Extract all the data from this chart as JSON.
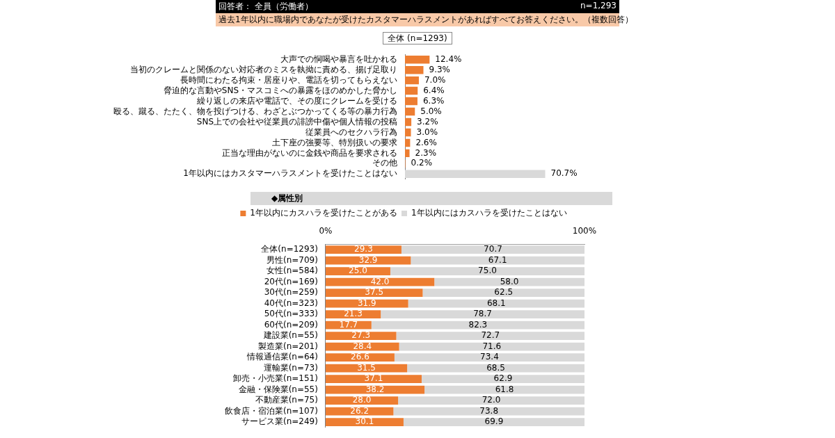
{
  "chart_data": [
    {
      "type": "bar",
      "orientation": "horizontal",
      "title": "全体 (n=1293)",
      "annotations": [
        "回答者： 全員（労働者）",
        "n=1,293",
        "過去1年以内に職場内であなたが受けたカスタマーハラスメントがあればすべてお答えください。（複数回答）"
      ],
      "categories": [
        "大声での恫喝や暴言を吐かれる",
        "当初のクレームと関係のない対応者のミスを執拗に責める、揚げ足取り",
        "長時間にわたる拘束・居座りや、電話を切ってもらえない",
        "脅迫的な言動やSNS・マスコミへの暴露をほのめかした脅かし",
        "繰り返しの来店や電話で、その度にクレームを受ける",
        "殴る、蹴る、たたく、物を投げつける、わざとぶつかってくる等の暴力行為",
        "SNS上での会社や従業員の誹謗中傷や個人情報の投稿",
        "従業員へのセクハラ行為",
        "土下座の強要等、特別扱いの要求",
        "正当な理由がないのに金銭や商品を要求される",
        "その他",
        "1年以内にはカスタマーハラスメントを受けたことはない"
      ],
      "values": [
        12.4,
        9.3,
        7.0,
        6.4,
        6.3,
        5.0,
        3.2,
        3.0,
        2.6,
        2.3,
        0.2,
        70.7
      ],
      "value_labels": [
        "12.4%",
        "9.3%",
        "7.0%",
        "6.4%",
        "6.3%",
        "5.0%",
        "3.2%",
        "3.0%",
        "2.6%",
        "2.3%",
        "0.2%",
        "70.7%"
      ],
      "colors": [
        "#ed7d31",
        "#ed7d31",
        "#ed7d31",
        "#ed7d31",
        "#ed7d31",
        "#ed7d31",
        "#ed7d31",
        "#ed7d31",
        "#ed7d31",
        "#ed7d31",
        "#ed7d31",
        "#d9d9d9"
      ],
      "tick_labels": "y",
      "legend": false
    },
    {
      "type": "bar",
      "orientation": "horizontal",
      "stacked": true,
      "title": "◆属性別",
      "categories": [
        "全体(n=1293)",
        "男性(n=709)",
        "女性(n=584)",
        "20代(n=169)",
        "30代(n=259)",
        "40代(n=323)",
        "50代(n=333)",
        "60代(n=209)",
        "建設業(n=55)",
        "製造業(n=201)",
        "情報通信業(n=64)",
        "運輸業(n=73)",
        "卸売・小売業(n=151)",
        "金融・保険業(n=55)",
        "不動産業(n=75)",
        "飲食店・宿泊業(n=107)",
        "サービス業(n=249)"
      ],
      "series": [
        {
          "name": "1年以内にカスハラを受けたことがある",
          "color": "#ed7d31",
          "values": [
            29.3,
            32.9,
            25.0,
            42.0,
            37.5,
            31.9,
            21.3,
            17.7,
            27.3,
            28.4,
            26.6,
            31.5,
            37.1,
            38.2,
            28.0,
            26.2,
            30.1
          ],
          "value_labels": [
            "29.3",
            "32.9",
            "25.0",
            "42.0",
            "37.5",
            "31.9",
            "21.3",
            "17.7",
            "27.3",
            "28.4",
            "26.6",
            "31.5",
            "37.1",
            "38.2",
            "28.0",
            "26.2",
            "30.1"
          ]
        },
        {
          "name": "1年以内にはカスハラを受けたことはない",
          "color": "#d9d9d9",
          "values": [
            70.7,
            67.1,
            75.0,
            58.0,
            62.5,
            68.1,
            78.7,
            82.3,
            72.7,
            71.6,
            73.4,
            68.5,
            62.9,
            61.8,
            72.0,
            73.8,
            69.9
          ],
          "value_labels": [
            "70.7",
            "67.1",
            "75.0",
            "58.0",
            "62.5",
            "68.1",
            "78.7",
            "82.3",
            "72.7",
            "71.6",
            "73.4",
            "68.5",
            "62.9",
            "61.8",
            "72.0",
            "73.8",
            "69.9"
          ]
        }
      ],
      "xlim": [
        0,
        100
      ],
      "xticks": [
        {
          "value": 0,
          "label": "0%"
        },
        {
          "value": 100,
          "label": "100%"
        }
      ],
      "legend": "top"
    }
  ]
}
